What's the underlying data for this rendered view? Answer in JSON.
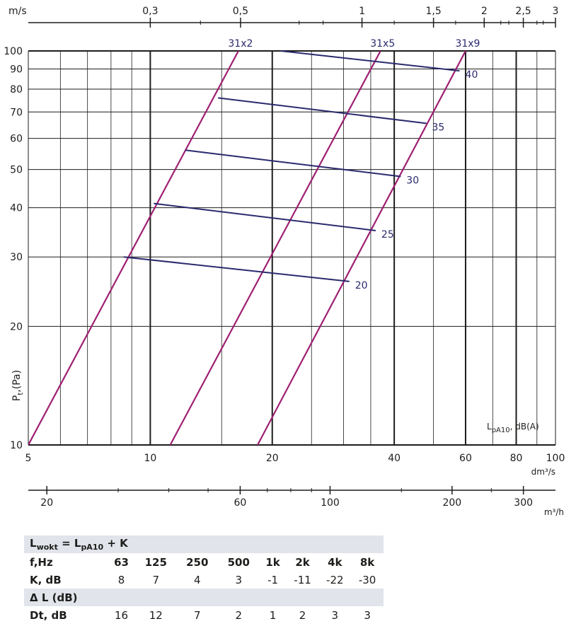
{
  "chart_data": {
    "type": "line",
    "scale": "log-log",
    "ylabel": {
      "main": "P",
      "sub": "t",
      "tail": ",(Pa)"
    },
    "ylim": [
      10,
      100
    ],
    "y_ticks": [
      10,
      20,
      30,
      40,
      50,
      60,
      70,
      80,
      90,
      100
    ],
    "xlim": [
      5,
      100
    ],
    "x_ticks": [
      5,
      10,
      20,
      40,
      60,
      80,
      100
    ],
    "x_unit": "dm³/s",
    "x_minor": [
      6,
      7,
      8,
      9,
      15,
      25,
      30,
      35,
      50,
      70,
      90
    ],
    "velocity_axis": {
      "unit": "m/s",
      "labels": [
        "0,3",
        "0,5",
        "1",
        "1,5",
        "2",
        "2,5",
        "3"
      ],
      "ticks": [
        {
          "value": 0.3,
          "flow": 10.0
        },
        {
          "value": 0.5,
          "flow": 16.7
        },
        {
          "value": 1,
          "flow": 33.3
        },
        {
          "value": 1.5,
          "flow": 50.0
        },
        {
          "value": 2,
          "flow": 66.7
        },
        {
          "value": 2.5,
          "flow": 83.3
        },
        {
          "value": 3,
          "flow": 100.0
        }
      ],
      "minor_flow": [
        13.3,
        23.3,
        26.7,
        40.0,
        56.7,
        73.3,
        76.7,
        90.0,
        93.3
      ]
    },
    "m3h_axis": {
      "unit": "m³/h",
      "labels": [
        "20",
        "60",
        "100",
        "200",
        "300"
      ],
      "ticks": [
        20,
        60,
        100,
        200,
        300
      ],
      "minor": [
        30,
        40,
        50,
        70,
        80,
        90,
        150,
        250
      ]
    },
    "series": [
      {
        "name": "31x2",
        "points": [
          [
            5,
            10
          ],
          [
            16.5,
            100
          ]
        ]
      },
      {
        "name": "31x5",
        "points": [
          [
            11.2,
            10
          ],
          [
            37,
            100
          ]
        ]
      },
      {
        "name": "31x9",
        "points": [
          [
            18.4,
            10
          ],
          [
            60,
            100
          ]
        ]
      }
    ],
    "noise_curves": [
      {
        "label": "20",
        "points": [
          [
            8.6,
            30
          ],
          [
            31,
            26
          ]
        ]
      },
      {
        "label": "25",
        "points": [
          [
            10.2,
            41
          ],
          [
            36,
            35
          ]
        ]
      },
      {
        "label": "30",
        "points": [
          [
            12.2,
            56
          ],
          [
            41.5,
            48
          ]
        ]
      },
      {
        "label": "35",
        "points": [
          [
            14.7,
            76
          ],
          [
            48,
            65.5
          ]
        ]
      },
      {
        "label": "40",
        "points": [
          [
            21,
            100
          ],
          [
            58,
            89
          ]
        ]
      }
    ],
    "noise_label": {
      "main": "L",
      "sub": "pA10",
      "tail": ", dB(A)"
    },
    "colors": {
      "series": "#9e1f72",
      "noise": "#2b2a6e",
      "grid": "#1d1d1b"
    }
  },
  "table": {
    "formula": {
      "a": "L",
      "a_sub": "wokt",
      "b": " = L",
      "b_sub": "pA10",
      "c": " + K"
    },
    "freq_label": "f,Hz",
    "freqs": [
      "63",
      "125",
      "250",
      "500",
      "1k",
      "2k",
      "4k",
      "8k"
    ],
    "k_label": "K, dB",
    "k_values": [
      "8",
      "7",
      "4",
      "3",
      "-1",
      "-11",
      "-22",
      "-30"
    ],
    "delta_label": "Δ L (dB)",
    "dt_label": "Dt, dB",
    "dt_values": [
      "16",
      "12",
      "7",
      "2",
      "1",
      "2",
      "3",
      "3"
    ]
  }
}
